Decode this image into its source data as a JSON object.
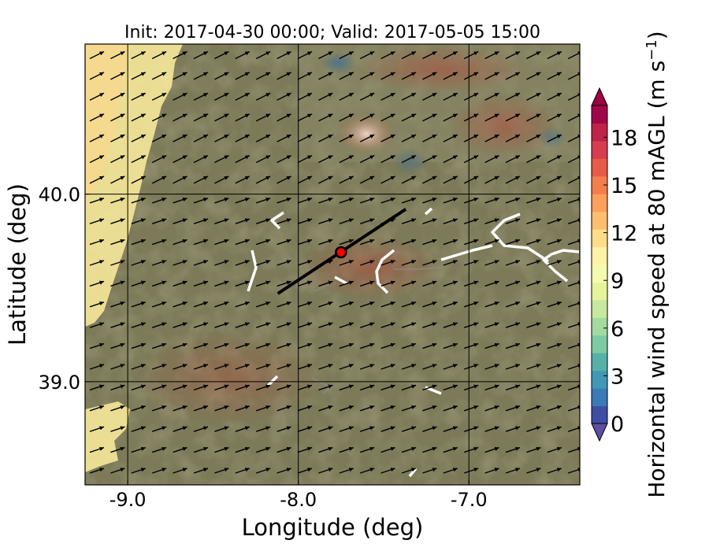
{
  "chart_data": {
    "type": "heatmap",
    "title": "Init: 2017-04-30 00:00; Valid: 2017-05-05 15:00",
    "xlabel": "Longitude (deg)",
    "ylabel": "Latitude (deg)",
    "xlim": [
      -9.25,
      -6.35
    ],
    "ylim": [
      38.45,
      40.8
    ],
    "xticks": [
      -9.0,
      -8.0,
      -7.0
    ],
    "xtick_labels": [
      "-9.0",
      "-8.0",
      "-7.0"
    ],
    "yticks": [
      39.0,
      40.0
    ],
    "ytick_labels": [
      "39.0",
      "40.0"
    ],
    "grid": true,
    "colorbar": {
      "label_main": "Horizontal wind speed at 80 mAGL (m s",
      "label_sup": "−1",
      "label_close": ")",
      "min": 0,
      "max": 20,
      "ticks": [
        0,
        3,
        6,
        9,
        12,
        15,
        18
      ],
      "tick_labels": [
        "0",
        "3",
        "6",
        "9",
        "12",
        "15",
        "18"
      ],
      "extend": "both",
      "colors": [
        "#3f4ea2",
        "#3b79b7",
        "#4198b6",
        "#56b1a9",
        "#7dcaa4",
        "#a3da9f",
        "#c7e99d",
        "#e5f49b",
        "#f5fbae",
        "#fff2a6",
        "#fedd8a",
        "#fdbf6f",
        "#fca05c",
        "#f57e4e",
        "#e75b48",
        "#d53e4f",
        "#be2449",
        "#a0074a"
      ],
      "under_color": "#5e4fa2",
      "over_color": "#9e0142"
    },
    "wind_arrows": {
      "direction": "from south-west",
      "grid": "regular"
    },
    "marker": {
      "lon": -7.75,
      "lat": 39.69,
      "color": "#ff0000"
    },
    "transect": {
      "start": [
        -8.12,
        39.47
      ],
      "end": [
        -7.37,
        39.92
      ]
    }
  }
}
